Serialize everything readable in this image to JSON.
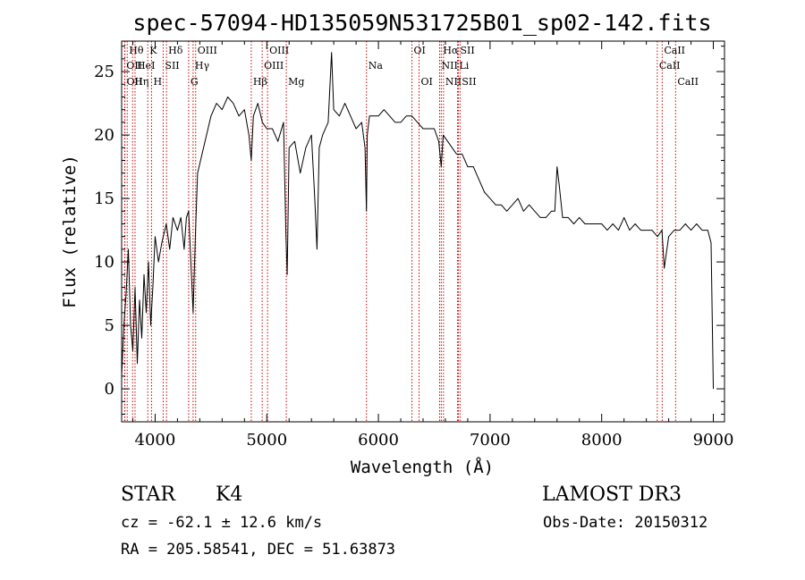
{
  "chart_data": {
    "type": "line",
    "title": "spec-57094-HD135059N531725B01_sp02-142.fits",
    "xlabel": "Wavelength (Å)",
    "ylabel": "Flux (relative)",
    "xlim": [
      3700,
      9100
    ],
    "ylim": [
      -2.6,
      27.4
    ],
    "xticks": [
      "4000",
      "5000",
      "6000",
      "7000",
      "8000",
      "9000"
    ],
    "yticks": [
      "0",
      "5",
      "10",
      "15",
      "20",
      "25"
    ],
    "x_tick_values": [
      4000,
      5000,
      6000,
      7000,
      8000,
      9000
    ],
    "y_tick_values": [
      0,
      5,
      10,
      15,
      20,
      25
    ],
    "series": [
      {
        "x": [
          3700,
          3720,
          3740,
          3760,
          3780,
          3800,
          3820,
          3840,
          3860,
          3880,
          3900,
          3920,
          3940,
          3960,
          3980,
          4000,
          4030,
          4060,
          4100,
          4130,
          4160,
          4200,
          4230,
          4260,
          4280,
          4300,
          4320,
          4340,
          4360,
          4380,
          4420,
          4460,
          4500,
          4550,
          4600,
          4650,
          4700,
          4750,
          4800,
          4840,
          4861,
          4880,
          4920,
          4960,
          5000,
          5050,
          5100,
          5150,
          5172,
          5183,
          5200,
          5250,
          5300,
          5350,
          5400,
          5430,
          5450,
          5470,
          5500,
          5550,
          5580,
          5600,
          5650,
          5700,
          5750,
          5800,
          5850,
          5880,
          5893,
          5900,
          5920,
          5950,
          6000,
          6050,
          6100,
          6150,
          6200,
          6250,
          6300,
          6350,
          6400,
          6450,
          6500,
          6540,
          6563,
          6580,
          6620,
          6660,
          6700,
          6750,
          6800,
          6850,
          6900,
          6950,
          7000,
          7050,
          7100,
          7150,
          7200,
          7250,
          7300,
          7350,
          7400,
          7450,
          7500,
          7550,
          7580,
          7600,
          7620,
          7650,
          7700,
          7750,
          7800,
          7850,
          7900,
          7950,
          8000,
          8050,
          8100,
          8150,
          8200,
          8250,
          8300,
          8350,
          8400,
          8450,
          8500,
          8540,
          8560,
          8600,
          8650,
          8700,
          8750,
          8800,
          8850,
          8900,
          8950,
          8980,
          9000
        ],
        "y": [
          1.0,
          5.0,
          7.5,
          11.0,
          5.0,
          3.0,
          8.0,
          2.0,
          7.0,
          4.0,
          9.0,
          6.0,
          10.0,
          5.0,
          8.0,
          12.0,
          10.0,
          11.5,
          13.0,
          11.0,
          13.5,
          12.5,
          13.5,
          11.0,
          13.5,
          14.0,
          10.0,
          6.0,
          12.0,
          17.0,
          18.5,
          20.0,
          21.5,
          22.5,
          22.0,
          23.0,
          22.5,
          21.5,
          22.0,
          20.0,
          18.0,
          21.5,
          22.5,
          21.0,
          20.5,
          20.5,
          19.5,
          21.0,
          12.0,
          9.0,
          19.0,
          19.5,
          17.0,
          19.0,
          20.0,
          15.0,
          11.0,
          19.0,
          20.0,
          21.0,
          26.5,
          22.0,
          21.5,
          22.5,
          21.5,
          20.5,
          21.0,
          19.0,
          14.0,
          20.0,
          21.5,
          21.5,
          21.5,
          22.0,
          21.5,
          21.0,
          21.0,
          21.5,
          21.5,
          21.0,
          20.5,
          20.5,
          20.5,
          19.5,
          17.5,
          20.0,
          19.5,
          19.0,
          18.5,
          18.5,
          17.5,
          17.5,
          16.5,
          15.5,
          15.0,
          14.5,
          14.5,
          14.0,
          14.5,
          15.0,
          14.0,
          14.5,
          14.0,
          13.5,
          13.5,
          14.0,
          14.0,
          17.5,
          16.0,
          13.5,
          13.5,
          13.0,
          13.5,
          13.0,
          13.0,
          13.0,
          13.0,
          12.5,
          13.0,
          12.5,
          13.5,
          12.5,
          13.0,
          12.5,
          12.5,
          12.5,
          12.0,
          12.5,
          9.5,
          12.0,
          12.5,
          12.5,
          13.0,
          12.5,
          13.0,
          12.5,
          12.5,
          11.5,
          0.0
        ]
      }
    ],
    "line_markers": [
      {
        "wavelength": 3750,
        "label": "Hθ",
        "row": 0
      },
      {
        "wavelength": 3727,
        "label": "OII",
        "row": 1
      },
      {
        "wavelength": 3729,
        "label": "OII",
        "row": 2
      },
      {
        "wavelength": 3798,
        "label": "Hη",
        "row": 2
      },
      {
        "wavelength": 3820,
        "label": "HeI",
        "row": 1
      },
      {
        "wavelength": 3934,
        "label": "K",
        "row": 0
      },
      {
        "wavelength": 3968,
        "label": "H",
        "row": 2
      },
      {
        "wavelength": 4072,
        "label": "SII",
        "row": 1
      },
      {
        "wavelength": 4102,
        "label": "Hδ",
        "row": 0
      },
      {
        "wavelength": 4300,
        "label": "G",
        "row": 2
      },
      {
        "wavelength": 4340,
        "label": "Hγ",
        "row": 1
      },
      {
        "wavelength": 4363,
        "label": "OIII",
        "row": 0
      },
      {
        "wavelength": 4861,
        "label": "Hβ",
        "row": 2
      },
      {
        "wavelength": 4959,
        "label": "OIII",
        "row": 1
      },
      {
        "wavelength": 5007,
        "label": "OIII",
        "row": 0
      },
      {
        "wavelength": 5175,
        "label": "Mg",
        "row": 2
      },
      {
        "wavelength": 5893,
        "label": "Na",
        "row": 1
      },
      {
        "wavelength": 6300,
        "label": "OI",
        "row": 0
      },
      {
        "wavelength": 6364,
        "label": "OI",
        "row": 2
      },
      {
        "wavelength": 6548,
        "label": "NII",
        "row": 1
      },
      {
        "wavelength": 6563,
        "label": "Hα",
        "row": 0
      },
      {
        "wavelength": 6583,
        "label": "NII",
        "row": 2
      },
      {
        "wavelength": 6708,
        "label": "Li",
        "row": 1
      },
      {
        "wavelength": 6716,
        "label": "SII",
        "row": 0
      },
      {
        "wavelength": 6731,
        "label": "SII",
        "row": 2
      },
      {
        "wavelength": 8498,
        "label": "CaII",
        "row": 1
      },
      {
        "wavelength": 8542,
        "label": "CaII",
        "row": 0
      },
      {
        "wavelength": 8662,
        "label": "CaII",
        "row": 2
      }
    ],
    "colors": {
      "spectrum": "#000000",
      "line_markers": "#cc0000",
      "axes": "#000000"
    },
    "grid": false,
    "legend": "none"
  },
  "footer": {
    "object_type": "STAR",
    "subclass": "K4",
    "survey": "LAMOST DR3",
    "cz": "cz = -62.1 ± 12.6 km/s",
    "obs_date": "Obs-Date: 20150312",
    "coords": "RA = 205.58541, DEC =  51.63873"
  }
}
